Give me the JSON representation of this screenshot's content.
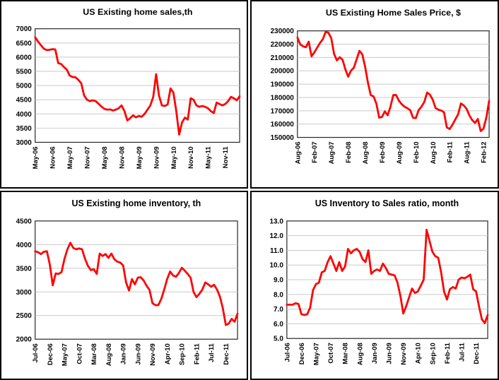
{
  "colors": {
    "line": "#ff0000",
    "grid": "#c9c9c9",
    "plot_border": "#262626",
    "frame": "#000000",
    "background": "#ffffff",
    "text": "#000000"
  },
  "chart_data": [
    {
      "type": "line",
      "id": "existing-home-sales",
      "title": "US Existing home sales,th",
      "xlabel": "",
      "ylabel": "",
      "x_first": "May-06",
      "x_last": "Apr-12",
      "x_tick_every": 6,
      "x_tick_labels": [
        "May-06",
        "Nov-06",
        "May-07",
        "Nov-07",
        "May-08",
        "Nov-08",
        "May-09",
        "Nov-09",
        "May-10",
        "Nov-10",
        "May-11",
        "Nov-11"
      ],
      "ylim": [
        3000,
        7000
      ],
      "y_tick_labels": [
        "7000",
        "6500",
        "6000",
        "5500",
        "5000",
        "4500",
        "4000",
        "3500",
        "3000"
      ],
      "grid": true,
      "legend": false,
      "line_color": "#ff0000",
      "values": [
        6700,
        6550,
        6420,
        6300,
        6250,
        6260,
        6280,
        6270,
        5790,
        5760,
        5650,
        5560,
        5350,
        5300,
        5290,
        5200,
        5080,
        4650,
        4500,
        4450,
        4480,
        4450,
        4360,
        4260,
        4180,
        4150,
        4160,
        4120,
        4150,
        4200,
        4300,
        4100,
        3770,
        3850,
        3950,
        3880,
        3930,
        3900,
        4000,
        4150,
        4300,
        4600,
        5400,
        4650,
        4300,
        4280,
        4330,
        4900,
        4750,
        4100,
        3270,
        3700,
        3870,
        3800,
        4550,
        4500,
        4300,
        4250,
        4280,
        4250,
        4200,
        4100,
        4030,
        4400,
        4350,
        4300,
        4350,
        4450,
        4600,
        4550,
        4480,
        4620
      ]
    },
    {
      "type": "line",
      "id": "existing-home-sales-price",
      "title": "US Existing Home Sales Price, $",
      "xlabel": "",
      "ylabel": "",
      "x_first": "Aug-06",
      "x_last": "Apr-12",
      "x_tick_every": 6,
      "x_tick_labels": [
        "Aug-06",
        "Feb-07",
        "Aug-07",
        "Feb-08",
        "Aug-08",
        "Feb-09",
        "Aug-09",
        "Feb-10",
        "Aug-10",
        "Feb-11",
        "Aug-11",
        "Feb-12"
      ],
      "ylim": [
        150000,
        230000
      ],
      "y_tick_labels": [
        "230000",
        "220000",
        "210000",
        "200000",
        "190000",
        "180000",
        "170000",
        "160000",
        "150000"
      ],
      "grid": true,
      "legend": false,
      "line_color": "#ff0000",
      "values": [
        225000,
        219800,
        218400,
        217700,
        221900,
        210900,
        213800,
        217400,
        220900,
        223700,
        229200,
        228600,
        224500,
        212700,
        207800,
        210200,
        208400,
        201100,
        195600,
        200100,
        202300,
        208600,
        215000,
        212400,
        203200,
        191200,
        181800,
        180800,
        175400,
        164800,
        165400,
        169600,
        166600,
        173000,
        181800,
        181800,
        177500,
        174900,
        173000,
        171900,
        170500,
        164800,
        164500,
        170500,
        173100,
        176600,
        183700,
        182100,
        178300,
        172000,
        170800,
        170200,
        168800,
        157500,
        156300,
        159500,
        163500,
        167300,
        175500,
        174000,
        171500,
        166500,
        163000,
        160900,
        163800,
        154800,
        156500,
        164800,
        177400
      ]
    },
    {
      "type": "line",
      "id": "existing-home-inventory",
      "title": "US Existing home inventory, th",
      "xlabel": "",
      "ylabel": "",
      "x_first": "Jul-06",
      "x_last": "Apr-12",
      "x_tick_every": 5,
      "x_tick_labels": [
        "Jul-06",
        "Dec-06",
        "May-07",
        "Oct-07",
        "Mar-08",
        "Aug-08",
        "Jan-09",
        "Jun-09",
        "Nov-09",
        "Apr-10",
        "Sep-10",
        "Feb-11",
        "Jul-11",
        "Dec-11"
      ],
      "ylim": [
        2000,
        4500
      ],
      "y_tick_labels": [
        "4500",
        "4000",
        "3500",
        "3000",
        "2500",
        "2000"
      ],
      "grid": true,
      "legend": false,
      "line_color": "#ff0000",
      "values": [
        3860,
        3840,
        3800,
        3850,
        3860,
        3580,
        3140,
        3390,
        3380,
        3420,
        3700,
        3900,
        4040,
        3930,
        3900,
        3920,
        3900,
        3700,
        3550,
        3460,
        3480,
        3380,
        3810,
        3760,
        3800,
        3720,
        3810,
        3690,
        3640,
        3620,
        3560,
        3200,
        3030,
        3270,
        3160,
        3300,
        3310,
        3240,
        3130,
        3040,
        2760,
        2720,
        2720,
        2850,
        3050,
        3270,
        3430,
        3350,
        3320,
        3400,
        3510,
        3450,
        3380,
        3300,
        3000,
        2890,
        2960,
        3050,
        3200,
        3160,
        3110,
        3150,
        3050,
        2900,
        2650,
        2300,
        2330,
        2430,
        2370,
        2540
      ]
    },
    {
      "type": "line",
      "id": "inventory-to-sales-ratio",
      "title": "US Inventory to Sales ratio, month",
      "xlabel": "",
      "ylabel": "",
      "x_first": "Jul-06",
      "x_last": "Apr-12",
      "x_tick_every": 5,
      "x_tick_labels": [
        "Jul-06",
        "Dec-06",
        "May-07",
        "Oct-07",
        "Mar-08",
        "Aug-08",
        "Jan-09",
        "Jun-09",
        "Nov-09",
        "Apr-10",
        "Sep-10",
        "Feb-11",
        "Jul-11",
        "Dec-11"
      ],
      "ylim": [
        5.0,
        13.0
      ],
      "y_tick_labels": [
        "13.0",
        "12.0",
        "11.0",
        "10.0",
        "9.0",
        "8.0",
        "7.0",
        "6.0",
        "5.0"
      ],
      "grid": true,
      "legend": false,
      "line_color": "#ff0000",
      "values": [
        7.3,
        7.3,
        7.3,
        7.4,
        7.35,
        6.65,
        6.6,
        6.65,
        7.1,
        8.3,
        8.7,
        8.8,
        9.5,
        9.6,
        10.2,
        10.6,
        10.1,
        9.6,
        10.2,
        9.6,
        9.9,
        11.1,
        10.8,
        11.0,
        11.1,
        10.9,
        10.4,
        10.2,
        11.0,
        9.4,
        9.6,
        9.7,
        9.6,
        10.1,
        9.8,
        9.4,
        9.35,
        9.3,
        8.8,
        7.9,
        6.7,
        7.2,
        7.8,
        8.4,
        8.1,
        8.2,
        8.6,
        9.0,
        12.4,
        11.65,
        10.9,
        10.6,
        10.5,
        9.5,
        8.2,
        7.65,
        8.35,
        8.5,
        8.4,
        9.0,
        9.15,
        9.1,
        9.2,
        9.35,
        8.35,
        8.2,
        7.2,
        6.3,
        6.05,
        6.6
      ]
    }
  ]
}
